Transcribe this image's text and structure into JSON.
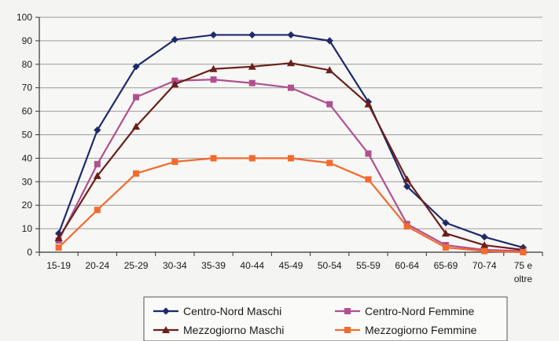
{
  "chart_data": {
    "type": "line",
    "title": "",
    "xlabel": "",
    "ylabel": "",
    "categories": [
      "15-19",
      "20-24",
      "25-29",
      "30-34",
      "35-39",
      "40-44",
      "45-49",
      "50-54",
      "55-59",
      "60-64",
      "65-69",
      "70-74",
      "75 e oltre"
    ],
    "category_labels": [
      [
        "15-19"
      ],
      [
        "20-24"
      ],
      [
        "25-29"
      ],
      [
        "30-34"
      ],
      [
        "35-39"
      ],
      [
        "40-44"
      ],
      [
        "45-49"
      ],
      [
        "50-54"
      ],
      [
        "55-59"
      ],
      [
        "60-64"
      ],
      [
        "65-69"
      ],
      [
        "70-74"
      ],
      [
        "75 e",
        "oltre"
      ]
    ],
    "ylim": [
      0,
      100
    ],
    "yticks": [
      0,
      10,
      20,
      30,
      40,
      50,
      60,
      70,
      80,
      90,
      100
    ],
    "grid": true,
    "legend_position": "bottom",
    "series": [
      {
        "name": "Centro-Nord Maschi",
        "color": "#1f2a6b",
        "marker": "diamond",
        "values": [
          8,
          52,
          79,
          90.5,
          92.5,
          92.5,
          92.5,
          90,
          64,
          28,
          12.5,
          6.5,
          2
        ]
      },
      {
        "name": "Centro-Nord Femmine",
        "color": "#b0508f",
        "marker": "square",
        "values": [
          5,
          37.5,
          66,
          73,
          73.5,
          72,
          70,
          63,
          42,
          12,
          3,
          1,
          0.5
        ]
      },
      {
        "name": "Mezzogiorno Maschi",
        "color": "#6b1f1a",
        "marker": "triangle",
        "values": [
          6,
          32.5,
          53.5,
          71.5,
          78,
          79,
          80.5,
          77.5,
          63,
          31,
          8,
          3,
          1
        ]
      },
      {
        "name": "Mezzogiorno Femmine",
        "color": "#f26a2e",
        "marker": "square",
        "values": [
          2,
          18,
          33.5,
          38.5,
          40,
          40,
          40,
          38,
          31,
          11,
          2,
          0.5,
          0
        ]
      }
    ]
  }
}
